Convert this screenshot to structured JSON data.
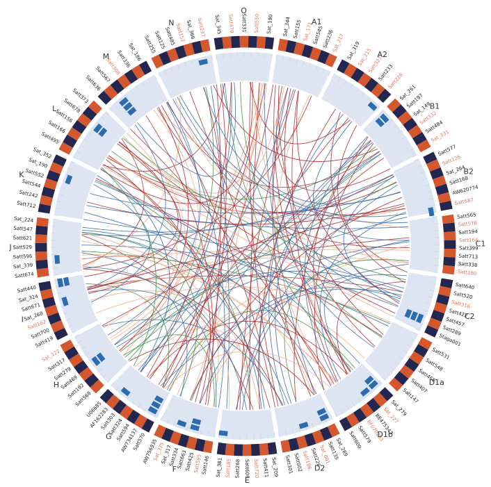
{
  "colors": {
    "navy": "#23264f",
    "red": "#d4572e",
    "track": "#dde5f2",
    "tick": "#c9d4e6",
    "hit": "#2b6cb0",
    "label_black": "#222222",
    "label_red": "#e2735a",
    "link_red": "#a8262b",
    "link_blue": "#3467a6",
    "link_green": "#3e8f4b",
    "link_orange": "#f0a884"
  },
  "chromosomes": [
    {
      "name": "O",
      "markers": [
        {
          "t": "Sat_345",
          "r": 0
        },
        {
          "t": "Satt479",
          "r": 1
        },
        {
          "t": "Satt331",
          "r": 0
        },
        {
          "t": "Satt550",
          "r": 1
        },
        {
          "t": "Sat_190",
          "r": 0
        }
      ]
    },
    {
      "name": "A1",
      "markers": [
        {
          "t": "Sat_344",
          "r": 0
        },
        {
          "t": "Satt155",
          "r": 0
        },
        {
          "t": "Sat_171",
          "r": 1
        },
        {
          "t": "Satt545",
          "r": 0
        },
        {
          "t": "Satt236",
          "r": 0
        },
        {
          "t": "Sat_217",
          "r": 1
        }
      ]
    },
    {
      "name": "A2",
      "markers": [
        {
          "t": "Sat_319",
          "r": 0
        },
        {
          "t": "Sat_215",
          "r": 1
        },
        {
          "t": "Satt327",
          "r": 1
        },
        {
          "t": "Satt233",
          "r": 0
        },
        {
          "t": "Satt228",
          "r": 1
        }
      ]
    },
    {
      "name": "B1",
      "markers": [
        {
          "t": "Sat_261",
          "r": 0
        },
        {
          "t": "Satt197",
          "r": 0
        },
        {
          "t": "Sat_149",
          "r": 0
        },
        {
          "t": "Satt332",
          "r": 1
        },
        {
          "t": "Satt484",
          "r": 0
        },
        {
          "t": "Sat_331",
          "r": 1
        }
      ]
    },
    {
      "name": "B2",
      "markers": [
        {
          "t": "Satt577",
          "r": 0
        },
        {
          "t": "Satt126",
          "r": 1
        },
        {
          "t": "Sat_264",
          "r": 0
        },
        {
          "t": "Satt168",
          "r": 0
        },
        {
          "t": "AW620774",
          "r": 0
        },
        {
          "t": "Satt687",
          "r": 1
        }
      ]
    },
    {
      "name": "C1",
      "markers": [
        {
          "t": "Satt565",
          "r": 0
        },
        {
          "t": "Satt578",
          "r": 1
        },
        {
          "t": "Satt194",
          "r": 0
        },
        {
          "t": "Satt164",
          "r": 1
        },
        {
          "t": "Satt399",
          "r": 0
        },
        {
          "t": "Satt713",
          "r": 0
        },
        {
          "t": "Satt338",
          "r": 0
        },
        {
          "t": "Satt180",
          "r": 1
        }
      ]
    },
    {
      "name": "C2",
      "markers": [
        {
          "t": "Satt640",
          "r": 0
        },
        {
          "t": "Satt520",
          "r": 0
        },
        {
          "t": "Satt316",
          "r": 1
        },
        {
          "t": "Satt422",
          "r": 0
        },
        {
          "t": "Satt457",
          "r": 0
        },
        {
          "t": "Satt289",
          "r": 0
        },
        {
          "t": "Staga001",
          "r": 0
        }
      ]
    },
    {
      "name": "D1a",
      "markers": [
        {
          "t": "Satt531",
          "r": 0
        },
        {
          "t": "Satt548",
          "r": 0
        },
        {
          "t": "Satt468",
          "r": 0
        },
        {
          "t": "Satt407",
          "r": 0
        },
        {
          "t": "Satt147",
          "r": 0
        }
      ]
    },
    {
      "name": "D1b",
      "markers": [
        {
          "t": "Sat_279",
          "r": 0
        },
        {
          "t": "Sat_227",
          "r": 1
        },
        {
          "t": "BE475343",
          "r": 0
        },
        {
          "t": "BF070293",
          "r": 1
        },
        {
          "t": "Satt579",
          "r": 0
        },
        {
          "t": "Satt600",
          "r": 0
        }
      ]
    },
    {
      "name": "D2",
      "markers": [
        {
          "t": "Sat_289",
          "r": 0
        },
        {
          "t": "Satt135",
          "r": 0
        },
        {
          "t": "Sat_001",
          "r": 1
        },
        {
          "t": "Satt226",
          "r": 0
        },
        {
          "t": "Satt186",
          "r": 1
        },
        {
          "t": "Satt002",
          "r": 0
        },
        {
          "t": "Satt301",
          "r": 0
        }
      ]
    },
    {
      "name": "E",
      "markers": [
        {
          "t": "Sat_209",
          "r": 0
        },
        {
          "t": "Satt411",
          "r": 0
        },
        {
          "t": "Satt720",
          "r": 1
        },
        {
          "t": "Satt606",
          "r": 0
        },
        {
          "t": "Satt268",
          "r": 0
        },
        {
          "t": "Satt185",
          "r": 1
        },
        {
          "t": "Sat_381",
          "r": 0
        }
      ]
    },
    {
      "name": "F",
      "markers": [
        {
          "t": "Satt146",
          "r": 0
        },
        {
          "t": "Satt595",
          "r": 1
        },
        {
          "t": "Satt425",
          "r": 0
        },
        {
          "t": "Satt663",
          "r": 0
        },
        {
          "t": "Satt334",
          "r": 0
        },
        {
          "t": "Sat_317",
          "r": 0
        },
        {
          "t": "Sat_375",
          "r": 1
        },
        {
          "t": "AW756935",
          "r": 0
        }
      ]
    },
    {
      "name": "G",
      "markers": [
        {
          "t": "Satt570",
          "r": 0
        },
        {
          "t": "AW734137",
          "r": 0
        },
        {
          "t": "Satt594",
          "r": 0
        },
        {
          "t": "Satt324",
          "r": 0
        },
        {
          "t": "Satt303",
          "r": 0
        },
        {
          "t": "AF162283",
          "r": 0
        },
        {
          "t": "U06685",
          "r": 0
        }
      ]
    },
    {
      "name": "H",
      "markers": [
        {
          "t": "Satt568",
          "r": 0
        },
        {
          "t": "Satt192",
          "r": 0
        },
        {
          "t": "Satt469",
          "r": 0
        },
        {
          "t": "Satt279",
          "r": 0
        },
        {
          "t": "Satt317",
          "r": 0
        },
        {
          "t": "Sat_122",
          "r": 1
        }
      ]
    },
    {
      "name": "I",
      "markers": [
        {
          "t": "Satt419",
          "r": 0
        },
        {
          "t": "Satt700",
          "r": 0
        },
        {
          "t": "Satt162",
          "r": 1
        },
        {
          "t": "Sat_268",
          "r": 0
        },
        {
          "t": "Satt671",
          "r": 0
        },
        {
          "t": "Sat_324",
          "r": 0
        },
        {
          "t": "Satt440",
          "r": 0
        }
      ]
    },
    {
      "name": "J",
      "markers": [
        {
          "t": "Satt674",
          "r": 0
        },
        {
          "t": "Sat_339",
          "r": 0
        },
        {
          "t": "Satt596",
          "r": 0
        },
        {
          "t": "Satt529",
          "r": 0
        },
        {
          "t": "Satt621",
          "r": 0
        },
        {
          "t": "Satt547",
          "r": 0
        },
        {
          "t": "Sat_224",
          "r": 0
        }
      ]
    },
    {
      "name": "K",
      "markers": [
        {
          "t": "Satt712",
          "r": 0
        },
        {
          "t": "Satt242",
          "r": 0
        },
        {
          "t": "Satt544",
          "r": 0
        },
        {
          "t": "Satt552",
          "r": 0
        },
        {
          "t": "Sat_190",
          "r": 0
        },
        {
          "t": "Sat_352",
          "r": 0
        }
      ]
    },
    {
      "name": "L",
      "markers": [
        {
          "t": "Satt495",
          "r": 0
        },
        {
          "t": "Satt166",
          "r": 0
        },
        {
          "t": "Satt156",
          "r": 0
        },
        {
          "t": "Satt678",
          "r": 0
        },
        {
          "t": "Satt373",
          "r": 0
        }
      ]
    },
    {
      "name": "M",
      "markers": [
        {
          "t": "Satt636",
          "r": 0
        },
        {
          "t": "Satt567",
          "r": 0
        },
        {
          "t": "Satt308",
          "r": 1
        },
        {
          "t": "Satt336",
          "r": 0
        },
        {
          "t": "Sat_186",
          "r": 0
        }
      ]
    },
    {
      "name": "N",
      "markers": [
        {
          "t": "Satt255",
          "r": 0
        },
        {
          "t": "Satt125",
          "r": 0
        },
        {
          "t": "Satt485",
          "r": 0
        },
        {
          "t": "Satt152",
          "r": 1
        },
        {
          "t": "Sat_366",
          "r": 0
        },
        {
          "t": "Satt237",
          "r": 1
        }
      ]
    }
  ]
}
